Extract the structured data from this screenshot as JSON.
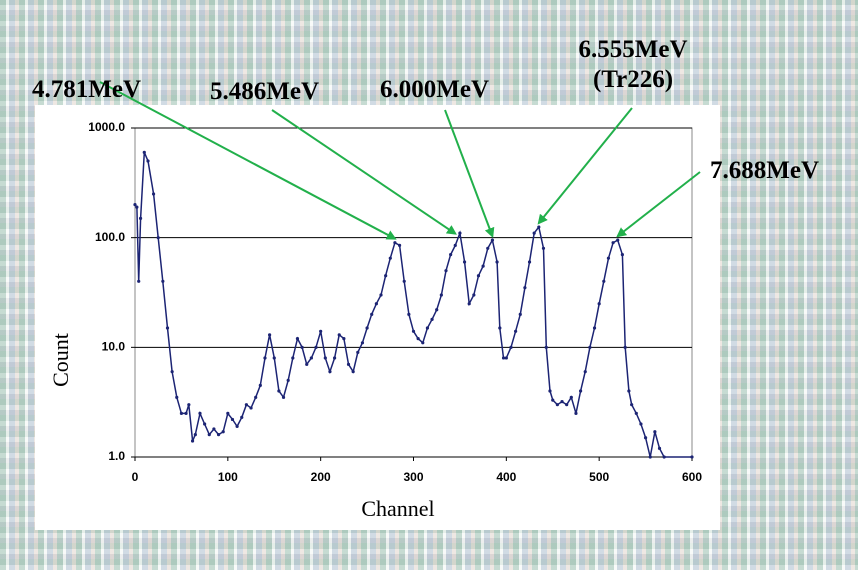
{
  "chart_data": {
    "type": "line",
    "xlabel": "Channel",
    "ylabel": "Count",
    "log_y": true,
    "grid": true,
    "xlim": [
      0,
      600
    ],
    "xticks": [
      0,
      100,
      200,
      300,
      400,
      500,
      600
    ],
    "ylim": [
      1,
      1000
    ],
    "yticks": [
      {
        "value": 1,
        "label": "1.0"
      },
      {
        "value": 10,
        "label": "10.0"
      },
      {
        "value": 100,
        "label": "100.0"
      },
      {
        "value": 1000,
        "label": "1000.0"
      }
    ],
    "series": [
      {
        "color": "#1c2474",
        "x": [
          0,
          2,
          4,
          6,
          10,
          14,
          20,
          25,
          30,
          35,
          40,
          45,
          50,
          55,
          58,
          62,
          65,
          70,
          75,
          80,
          85,
          90,
          95,
          100,
          105,
          110,
          115,
          120,
          125,
          130,
          135,
          140,
          145,
          150,
          155,
          160,
          165,
          170,
          175,
          180,
          185,
          190,
          195,
          200,
          205,
          210,
          215,
          220,
          225,
          230,
          235,
          240,
          245,
          250,
          255,
          260,
          265,
          270,
          275,
          280,
          285,
          290,
          295,
          300,
          305,
          310,
          315,
          320,
          325,
          330,
          335,
          340,
          345,
          350,
          355,
          360,
          365,
          370,
          375,
          380,
          385,
          390,
          393,
          397,
          400,
          405,
          410,
          415,
          420,
          425,
          430,
          435,
          440,
          443,
          447,
          450,
          455,
          460,
          465,
          470,
          475,
          480,
          485,
          490,
          495,
          500,
          505,
          510,
          515,
          520,
          525,
          528,
          532,
          535,
          540,
          545,
          550,
          555,
          560,
          565,
          570,
          600
        ],
        "values": [
          200,
          190,
          40,
          150,
          600,
          500,
          250,
          100,
          40,
          15,
          6,
          3.5,
          2.5,
          2.5,
          3,
          1.4,
          1.6,
          2.5,
          2,
          1.6,
          1.8,
          1.6,
          1.7,
          2.5,
          2.2,
          1.9,
          2.3,
          3,
          2.8,
          3.5,
          4.5,
          8,
          13,
          8,
          4,
          3.5,
          5,
          8,
          12,
          10,
          7,
          8,
          10,
          14,
          8,
          6,
          8,
          13,
          12,
          7,
          6,
          9,
          11,
          15,
          20,
          25,
          30,
          45,
          65,
          90,
          85,
          40,
          20,
          14,
          12,
          11,
          15,
          18,
          22,
          30,
          50,
          70,
          85,
          110,
          60,
          25,
          30,
          45,
          55,
          80,
          95,
          60,
          15,
          8,
          8,
          10,
          14,
          20,
          35,
          60,
          110,
          125,
          80,
          10,
          4,
          3.3,
          3,
          3.2,
          3,
          3.5,
          2.5,
          4,
          6,
          10,
          15,
          25,
          40,
          65,
          90,
          95,
          70,
          10,
          4,
          3,
          2.5,
          2,
          1.5,
          1,
          1.7,
          1.2,
          1,
          1
        ]
      }
    ],
    "annotations": [
      {
        "lines": [
          "4.781MeV"
        ],
        "x": 280,
        "y": 90
      },
      {
        "lines": [
          "5.486MeV"
        ],
        "x": 345,
        "y": 100
      },
      {
        "lines": [
          "6.000MeV"
        ],
        "x": 385,
        "y": 95
      },
      {
        "lines": [
          "6.555MeV",
          "(Tr226)"
        ],
        "x": 435,
        "y": 125
      },
      {
        "lines": [
          "7.688MeV"
        ],
        "x": 520,
        "y": 95
      }
    ]
  }
}
